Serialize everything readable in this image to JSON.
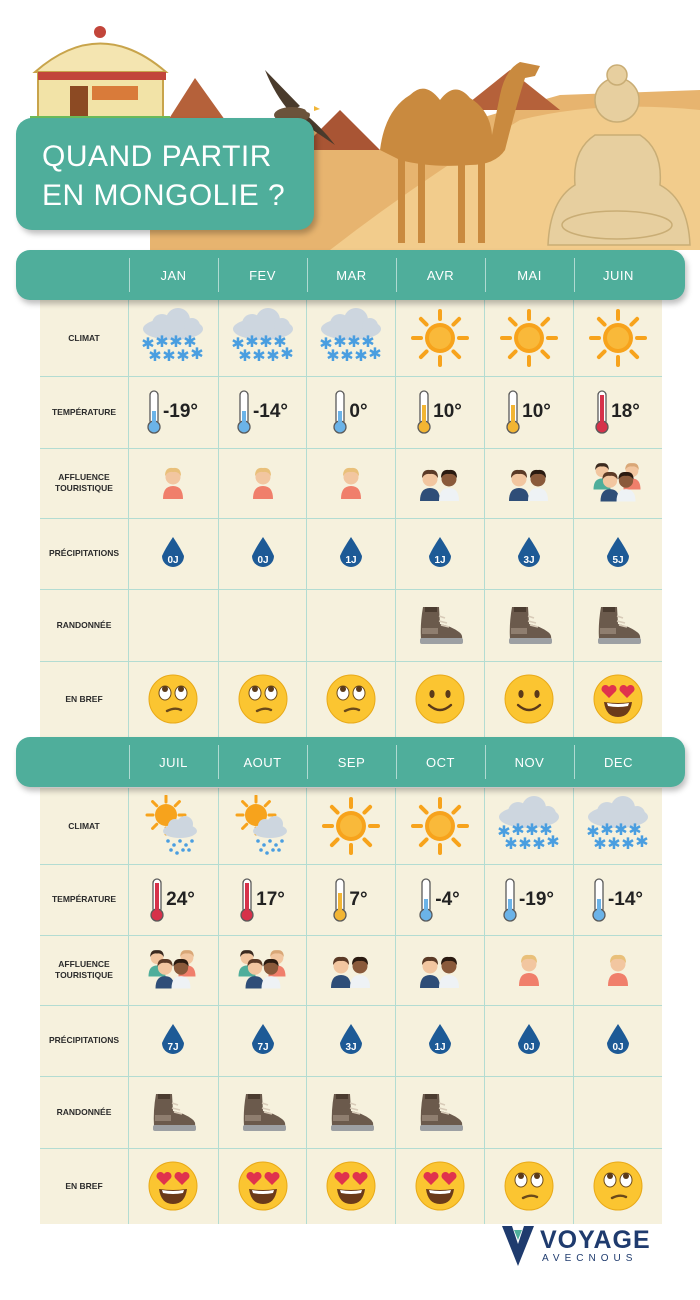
{
  "header": {
    "title_line1": "QUAND PARTIR",
    "title_line2": "EN MONGOLIE ?"
  },
  "row_labels": {
    "climat": "CLIMAT",
    "temperature": "TEMPÉRATURE",
    "affluence_line1": "AFFLUENCE",
    "affluence_line2": "TOURISTIQUE",
    "precipitations": "PRÉCIPITATIONS",
    "randonnee": "RANDONNÉE",
    "en_bref": "EN BREF"
  },
  "months_1": [
    {
      "name": "JAN",
      "climate": "snow-cloud-icon",
      "temp": "-19°",
      "temp_level": "cold",
      "crowd": 1,
      "rain": "0J",
      "hiking": false,
      "mood": "eyeroll-face-icon"
    },
    {
      "name": "FEV",
      "climate": "snow-cloud-icon",
      "temp": "-14°",
      "temp_level": "cold",
      "crowd": 1,
      "rain": "0J",
      "hiking": false,
      "mood": "eyeroll-face-icon"
    },
    {
      "name": "MAR",
      "climate": "snow-cloud-icon",
      "temp": "0°",
      "temp_level": "cold",
      "crowd": 1,
      "rain": "1J",
      "hiking": false,
      "mood": "eyeroll-face-icon"
    },
    {
      "name": "AVR",
      "climate": "sun-icon",
      "temp": "10°",
      "temp_level": "mild",
      "crowd": 2,
      "rain": "1J",
      "hiking": true,
      "mood": "smile-face-icon"
    },
    {
      "name": "MAI",
      "climate": "sun-icon",
      "temp": "10°",
      "temp_level": "mild",
      "crowd": 2,
      "rain": "3J",
      "hiking": true,
      "mood": "smile-face-icon"
    },
    {
      "name": "JUIN",
      "climate": "sun-icon",
      "temp": "18°",
      "temp_level": "hot",
      "crowd": 3,
      "rain": "5J",
      "hiking": true,
      "mood": "heart-eyes-face-icon"
    }
  ],
  "months_2": [
    {
      "name": "JUIL",
      "climate": "sun-rain-icon",
      "temp": "24°",
      "temp_level": "hot",
      "crowd": 3,
      "rain": "7J",
      "hiking": true,
      "mood": "heart-eyes-face-icon"
    },
    {
      "name": "AOUT",
      "climate": "sun-rain-icon",
      "temp": "17°",
      "temp_level": "hot",
      "crowd": 3,
      "rain": "7J",
      "hiking": true,
      "mood": "heart-eyes-face-icon"
    },
    {
      "name": "SEP",
      "climate": "sun-icon",
      "temp": "7°",
      "temp_level": "mild",
      "crowd": 2,
      "rain": "3J",
      "hiking": true,
      "mood": "heart-eyes-face-icon"
    },
    {
      "name": "OCT",
      "climate": "sun-icon",
      "temp": "-4°",
      "temp_level": "cold",
      "crowd": 2,
      "rain": "1J",
      "hiking": true,
      "mood": "heart-eyes-face-icon"
    },
    {
      "name": "NOV",
      "climate": "snow-cloud-icon",
      "temp": "-19°",
      "temp_level": "cold",
      "crowd": 1,
      "rain": "0J",
      "hiking": false,
      "mood": "eyeroll-face-icon"
    },
    {
      "name": "DEC",
      "climate": "snow-cloud-icon",
      "temp": "-14°",
      "temp_level": "cold",
      "crowd": 1,
      "rain": "0J",
      "hiking": false,
      "mood": "eyeroll-face-icon"
    }
  ],
  "colors": {
    "teal": "#4fae9b",
    "table_bg": "#f6f1dd",
    "drop": "#1d5a96",
    "sun": "#f7a31c",
    "cloud": "#cdd6df",
    "snow": "#4a9ee0"
  },
  "logo": {
    "main": "VOYAGE",
    "sub": "AVECNOUS"
  }
}
